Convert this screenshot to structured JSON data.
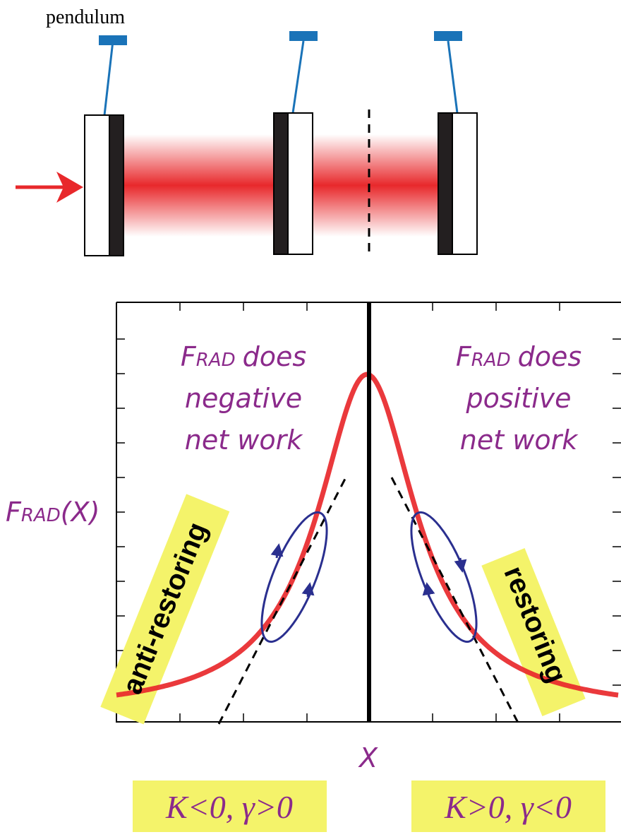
{
  "top": {
    "label": "pendulum"
  },
  "plot": {
    "y_label": {
      "main": "F",
      "sub": "RAD",
      "arg": "(X)"
    },
    "x_label": "X",
    "left_region": {
      "main": "F",
      "sub": "RAD",
      "rest": "does",
      "line2": "negative",
      "line3": "net work"
    },
    "right_region": {
      "main": "F",
      "sub": "RAD",
      "rest": "does",
      "line2": "positive",
      "line3": "net work"
    },
    "left_tag": "anti-restoring",
    "right_tag": "restoring"
  },
  "conditions": [
    "K<0, γ>0",
    "K>0, γ<0"
  ]
}
